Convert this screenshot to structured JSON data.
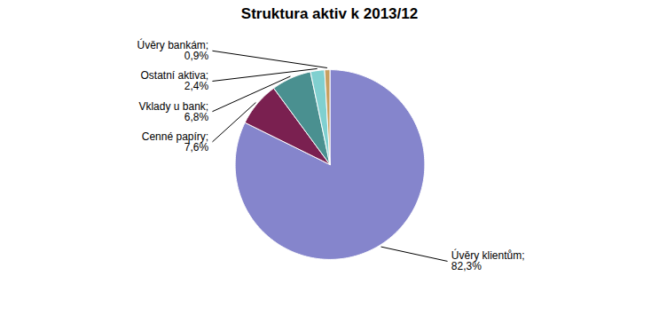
{
  "chart_data": {
    "type": "pie",
    "title": "Struktura aktiv k 2013/12",
    "categories": [
      "Úvěry klientům;",
      "Cenné papíry;",
      "Vklady u bank;",
      "Ostatní aktiva;",
      "Úvěry bankám;"
    ],
    "values": [
      82.3,
      7.6,
      6.8,
      2.4,
      0.9
    ],
    "value_labels": [
      "82,3%",
      "7,6%",
      "6,8%",
      "2,4%",
      "0,9%"
    ],
    "colors": [
      "#8585CC",
      "#7A2050",
      "#4A9090",
      "#80D0D0",
      "#C8A060"
    ],
    "data_labels": true
  }
}
